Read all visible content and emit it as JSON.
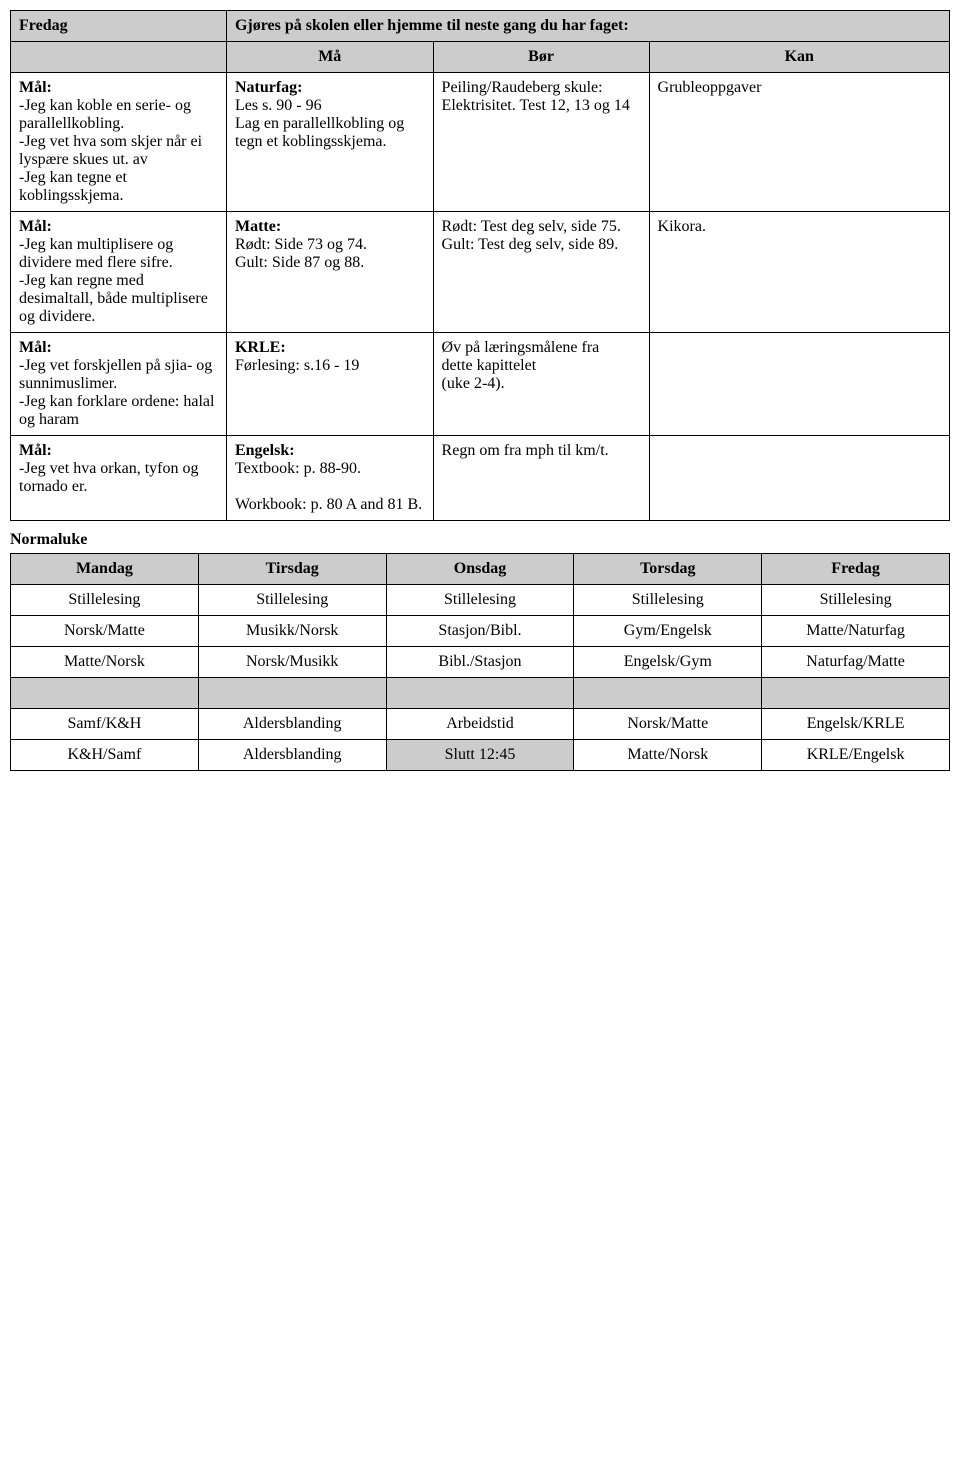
{
  "top": {
    "day": "Fredag",
    "intro": "Gjøres på skolen eller hjemme til neste gang du har faget:",
    "cols": {
      "ma": "Må",
      "bor": "Bør",
      "kan": "Kan"
    },
    "rows": [
      {
        "goal_label": "Mål:",
        "goal": "-Jeg kan koble en serie- og parallellkobling.\n-Jeg vet hva som skjer når ei lyspære skues ut. av\n-Jeg kan tegne et koblingsskjema.",
        "ma_label": "Naturfag:",
        "ma": "Les s. 90 - 96\nLag en parallellkobling og tegn et koblingsskjema.",
        "bor": "Peiling/Raudeberg skule: Elektrisitet. Test 12, 13 og 14",
        "kan": "Grubleoppgaver"
      },
      {
        "goal_label": "Mål:",
        "goal": "-Jeg kan multiplisere og dividere med flere sifre.\n-Jeg kan regne med desimaltall, både multiplisere og dividere.",
        "ma_label": "Matte:",
        "ma": "Rødt: Side 73 og 74.\nGult: Side 87 og 88.",
        "bor": "Rødt: Test deg selv, side 75.\nGult: Test deg selv, side 89.",
        "kan": "Kikora."
      },
      {
        "goal_label": "Mål:",
        "goal": "-Jeg vet forskjellen på sjia- og sunnimuslimer.\n-Jeg kan forklare ordene: halal og haram",
        "ma_label": "KRLE:",
        "ma": "Førlesing: s.16 - 19",
        "bor": "Øv på læringsmålene fra\ndette kapittelet\n(uke 2-4).",
        "kan": ""
      },
      {
        "goal_label": "Mål:",
        "goal": "-Jeg vet hva orkan, tyfon og tornado er.",
        "ma_label": "Engelsk:",
        "ma": "Textbook: p. 88-90.\n\nWorkbook: p. 80 A and 81 B.",
        "bor": "Regn om fra mph til km/t.",
        "kan": ""
      }
    ]
  },
  "section_label": "Normaluke",
  "sched": {
    "headers": [
      "Mandag",
      "Tirsdag",
      "Onsdag",
      "Torsdag",
      "Fredag"
    ],
    "rows": [
      [
        "Stillelesing",
        "Stillelesing",
        "Stillelesing",
        "Stillelesing",
        "Stillelesing"
      ],
      [
        "Norsk/Matte",
        "Musikk/Norsk",
        "Stasjon/Bibl.",
        "Gym/Engelsk",
        "Matte/Naturfag"
      ],
      [
        "Matte/Norsk",
        "Norsk/Musikk",
        "Bibl./Stasjon",
        "Engelsk/Gym",
        "Naturfag/Matte"
      ],
      [
        "Samf/K&H",
        "Aldersblanding",
        "Arbeidstid",
        "Norsk/Matte",
        "Engelsk/KRLE"
      ],
      [
        "K&H/Samf",
        "Aldersblanding",
        "Slutt 12:45",
        "Matte/Norsk",
        "KRLE/Engelsk"
      ]
    ],
    "gray_cell": {
      "row": 4,
      "col": 2
    }
  }
}
